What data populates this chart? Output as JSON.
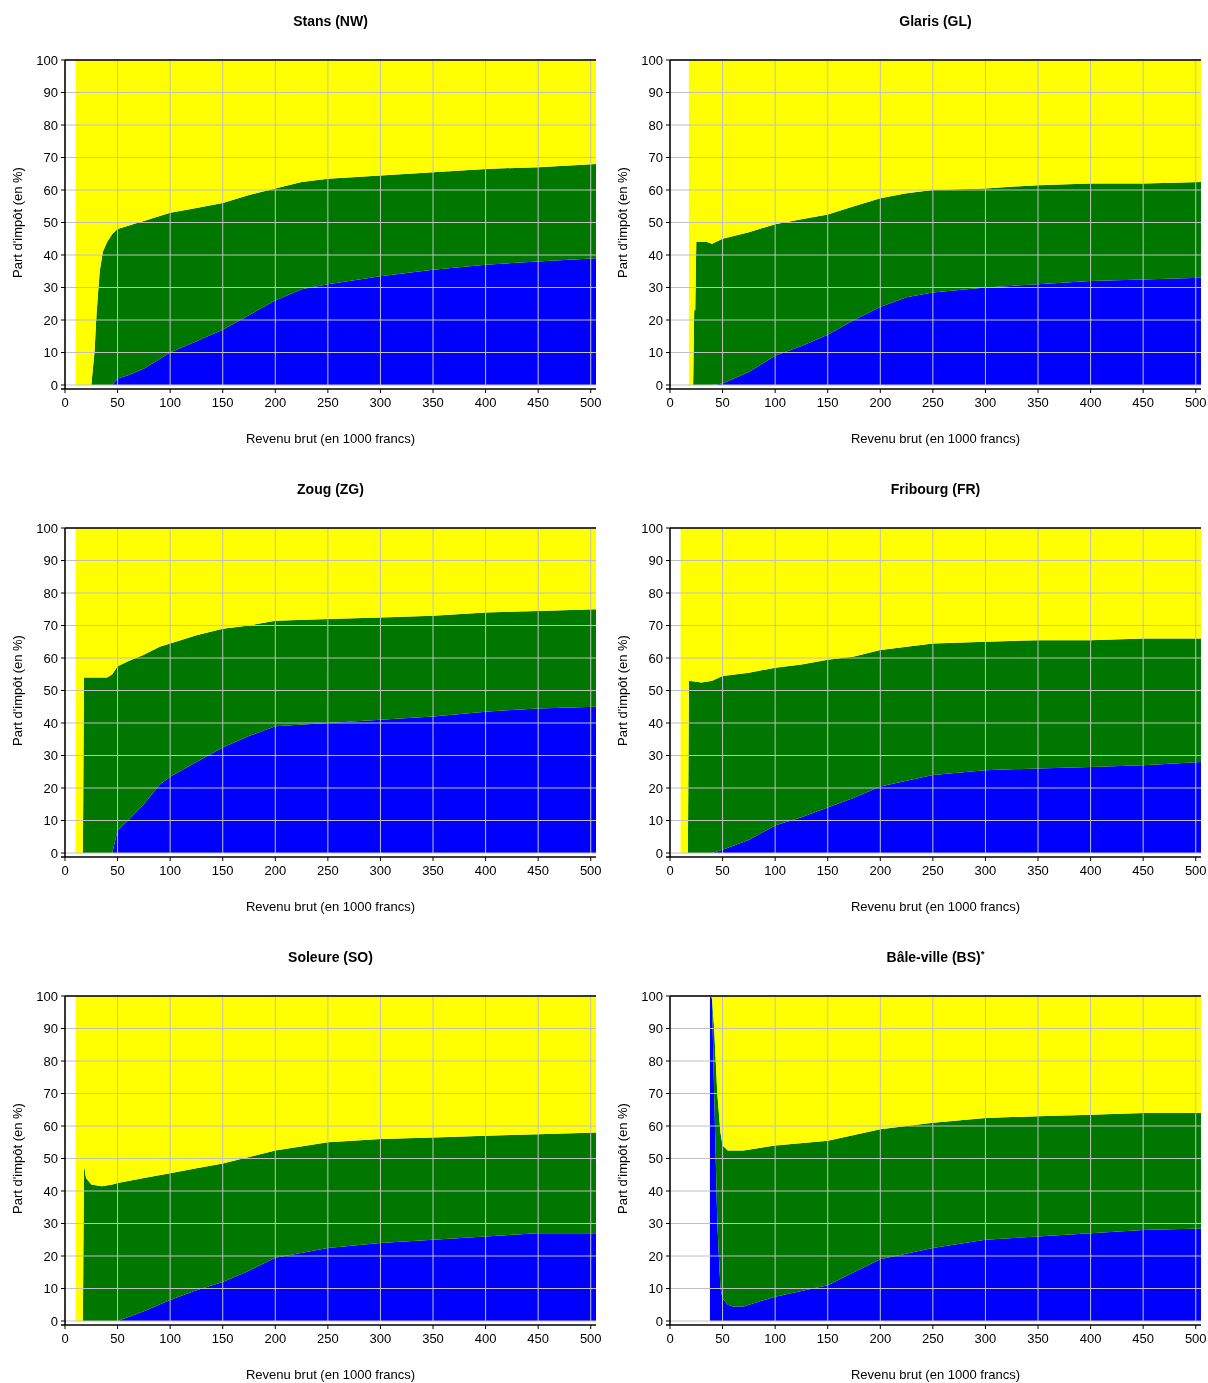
{
  "chart_data": [
    {
      "type": "area",
      "stacked": true,
      "title": "Stans (NW)",
      "xlabel": "Revenu brut (en 1000 francs)",
      "ylabel": "Part d'impôt (en %)",
      "xlim": [
        0,
        505
      ],
      "ylim": [
        0,
        100
      ],
      "xticks": [
        0,
        50,
        100,
        150,
        200,
        250,
        300,
        350,
        400,
        450,
        500
      ],
      "yticks": [
        0,
        10,
        20,
        30,
        40,
        50,
        60,
        70,
        80,
        90,
        100
      ],
      "grid": true,
      "legend": false,
      "x": [
        10,
        25,
        28,
        30,
        33,
        36,
        40,
        45,
        50,
        60,
        75,
        100,
        125,
        150,
        175,
        200,
        225,
        250,
        300,
        350,
        400,
        450,
        505
      ],
      "series": [
        {
          "color": "#0000ff",
          "values": [
            0,
            0,
            0,
            0,
            0,
            0,
            0,
            0,
            2,
            3,
            5,
            10,
            13.5,
            17,
            21.5,
            26,
            29.5,
            31,
            33.5,
            35.5,
            37,
            38,
            39
          ]
        },
        {
          "color": "#007800",
          "values": [
            0,
            0,
            10,
            22,
            35,
            41,
            44,
            46.5,
            46,
            46,
            45.5,
            43,
            41,
            39,
            37,
            34.5,
            33,
            32.5,
            31,
            30,
            29.5,
            29,
            29
          ]
        },
        {
          "color": "#ffff00",
          "values": [
            100,
            100,
            90,
            78,
            65,
            59,
            56,
            53.5,
            52,
            51,
            49.5,
            47,
            45.5,
            44,
            41.5,
            39.5,
            37.5,
            36.5,
            35.5,
            34.5,
            33.5,
            33,
            32
          ]
        }
      ]
    },
    {
      "type": "area",
      "stacked": true,
      "title": "Glaris (GL)",
      "xlabel": "Revenu brut (en 1000 francs)",
      "ylabel": "Part d'impôt (en %)",
      "xlim": [
        0,
        505
      ],
      "ylim": [
        0,
        100
      ],
      "xticks": [
        0,
        50,
        100,
        150,
        200,
        250,
        300,
        350,
        400,
        450,
        500
      ],
      "yticks": [
        0,
        10,
        20,
        30,
        40,
        50,
        60,
        70,
        80,
        90,
        100
      ],
      "grid": true,
      "legend": false,
      "x": [
        18,
        22,
        23,
        24,
        25,
        35,
        40,
        50,
        75,
        100,
        125,
        150,
        175,
        200,
        225,
        250,
        300,
        350,
        400,
        450,
        505
      ],
      "series": [
        {
          "color": "#0000ff",
          "values": [
            0,
            0,
            0,
            0,
            0,
            0,
            0,
            0.5,
            4,
            9,
            12,
            15.5,
            20,
            24,
            27,
            28.5,
            30,
            31,
            32,
            32.5,
            33
          ]
        },
        {
          "color": "#007800",
          "values": [
            0,
            0,
            23,
            23,
            44,
            44,
            43.5,
            44.5,
            43,
            40.5,
            39,
            37,
            35,
            33.5,
            32,
            31.5,
            30.5,
            30.5,
            30,
            29.5,
            29.5
          ]
        },
        {
          "color": "#ffff00",
          "values": [
            100,
            100,
            77,
            77,
            56,
            56,
            56.5,
            55,
            53,
            50.5,
            49,
            47.5,
            45,
            42.5,
            41,
            40,
            39.5,
            38.5,
            38,
            38,
            37.5
          ]
        }
      ]
    },
    {
      "type": "area",
      "stacked": true,
      "title": "Zoug (ZG)",
      "xlabel": "Revenu brut (en 1000 francs)",
      "ylabel": "Part d'impôt (en %)",
      "xlim": [
        0,
        505
      ],
      "ylim": [
        0,
        100
      ],
      "xticks": [
        0,
        50,
        100,
        150,
        200,
        250,
        300,
        350,
        400,
        450,
        500
      ],
      "yticks": [
        0,
        10,
        20,
        30,
        40,
        50,
        60,
        70,
        80,
        90,
        100
      ],
      "grid": true,
      "legend": false,
      "x": [
        10,
        17,
        18,
        30,
        40,
        45,
        50,
        60,
        75,
        90,
        100,
        125,
        150,
        175,
        200,
        250,
        300,
        350,
        400,
        450,
        505
      ],
      "series": [
        {
          "color": "#0000ff",
          "values": [
            0,
            0,
            0,
            0,
            0,
            0,
            7,
            10,
            15,
            21,
            23.5,
            28,
            32.5,
            36,
            39,
            40,
            41,
            42,
            43.5,
            44.5,
            45
          ]
        },
        {
          "color": "#007800",
          "values": [
            0,
            0,
            54,
            54,
            54,
            55,
            50.5,
            49,
            46,
            42.5,
            41,
            39,
            36.5,
            34,
            32.5,
            32,
            31.5,
            31,
            30.5,
            30,
            30
          ]
        },
        {
          "color": "#ffff00",
          "values": [
            100,
            100,
            46,
            46,
            46,
            45,
            42.5,
            41,
            39,
            36.5,
            35.5,
            33,
            31,
            30,
            28.5,
            28,
            27.5,
            27,
            26,
            25.5,
            25
          ]
        }
      ]
    },
    {
      "type": "area",
      "stacked": true,
      "title": "Fribourg (FR)",
      "xlabel": "Revenu brut (en 1000 francs)",
      "ylabel": "Part d'impôt (en %)",
      "xlim": [
        0,
        505
      ],
      "ylim": [
        0,
        100
      ],
      "xticks": [
        0,
        50,
        100,
        150,
        200,
        250,
        300,
        350,
        400,
        450,
        500
      ],
      "yticks": [
        0,
        10,
        20,
        30,
        40,
        50,
        60,
        70,
        80,
        90,
        100
      ],
      "grid": true,
      "legend": false,
      "x": [
        10,
        17,
        18,
        30,
        40,
        50,
        75,
        100,
        125,
        150,
        175,
        200,
        250,
        300,
        350,
        400,
        450,
        505
      ],
      "series": [
        {
          "color": "#0000ff",
          "values": [
            0,
            0,
            0,
            0,
            0,
            1,
            4,
            8.5,
            11,
            14,
            17,
            20.5,
            24,
            25.5,
            26,
            26.5,
            27,
            28
          ]
        },
        {
          "color": "#007800",
          "values": [
            0,
            0,
            53,
            52.5,
            53,
            53.5,
            51.5,
            48.5,
            47,
            45.5,
            43.5,
            42,
            40.5,
            39.5,
            39.5,
            39,
            39,
            38
          ]
        },
        {
          "color": "#ffff00",
          "values": [
            100,
            100,
            47,
            47.5,
            47,
            45.5,
            44.5,
            43,
            42,
            40.5,
            39.5,
            37.5,
            35.5,
            35,
            34.5,
            34.5,
            34,
            34
          ]
        }
      ]
    },
    {
      "type": "area",
      "stacked": true,
      "title": "Soleure (SO)",
      "xlabel": "Revenu brut (en 1000 francs)",
      "ylabel": "Part d'impôt (en %)",
      "xlim": [
        0,
        505
      ],
      "ylim": [
        0,
        100
      ],
      "xticks": [
        0,
        50,
        100,
        150,
        200,
        250,
        300,
        350,
        400,
        450,
        500
      ],
      "yticks": [
        0,
        10,
        20,
        30,
        40,
        50,
        60,
        70,
        80,
        90,
        100
      ],
      "grid": true,
      "legend": false,
      "x": [
        10,
        17,
        18,
        20,
        25,
        35,
        45,
        50,
        75,
        100,
        125,
        150,
        175,
        200,
        250,
        300,
        350,
        400,
        450,
        505
      ],
      "series": [
        {
          "color": "#0000ff",
          "values": [
            0,
            0,
            0,
            0,
            0,
            0,
            0,
            0,
            3,
            6.5,
            9.5,
            12,
            15.5,
            19.5,
            22.5,
            24,
            25,
            26,
            27,
            27
          ]
        },
        {
          "color": "#007800",
          "values": [
            0,
            0,
            48,
            44,
            42,
            41.5,
            42,
            42.5,
            41,
            39,
            37.5,
            36.5,
            35,
            33,
            32.5,
            32,
            31.5,
            31,
            30.5,
            31
          ]
        },
        {
          "color": "#ffff00",
          "values": [
            100,
            100,
            52,
            56,
            58,
            58.5,
            58,
            57.5,
            56,
            54.5,
            53,
            51.5,
            49.5,
            47.5,
            45,
            44,
            43.5,
            43,
            42.5,
            42
          ]
        }
      ]
    },
    {
      "type": "area",
      "stacked": true,
      "title": "Bâle-ville (BS)$^{*}$",
      "xlabel": "Revenu brut (en 1000 francs)",
      "ylabel": "Part d'impôt (en %)",
      "xlim": [
        0,
        505
      ],
      "ylim": [
        0,
        100
      ],
      "xticks": [
        0,
        50,
        100,
        150,
        200,
        250,
        300,
        350,
        400,
        450,
        500
      ],
      "yticks": [
        0,
        10,
        20,
        30,
        40,
        50,
        60,
        70,
        80,
        90,
        100
      ],
      "grid": true,
      "legend": false,
      "x": [
        38,
        40,
        42,
        45,
        48,
        50,
        55,
        60,
        70,
        100,
        150,
        200,
        250,
        300,
        350,
        400,
        450,
        505
      ],
      "series": [
        {
          "color": "#0000ff",
          "values": [
            100,
            99,
            70,
            30,
            10,
            7,
            5,
            4.5,
            4.5,
            7.5,
            11,
            19,
            22.5,
            25,
            26,
            27,
            28,
            28.5
          ]
        },
        {
          "color": "#007800",
          "values": [
            0,
            0.5,
            20,
            40,
            48,
            47,
            47.5,
            48,
            48,
            46.5,
            44.5,
            40,
            38.5,
            37.5,
            37,
            36.5,
            36,
            35.5
          ]
        },
        {
          "color": "#ffff00",
          "values": [
            0,
            0.5,
            10,
            30,
            42,
            46,
            47.5,
            47.5,
            47.5,
            46,
            44.5,
            41,
            39,
            37.5,
            37,
            36.5,
            36,
            36
          ]
        }
      ]
    }
  ]
}
